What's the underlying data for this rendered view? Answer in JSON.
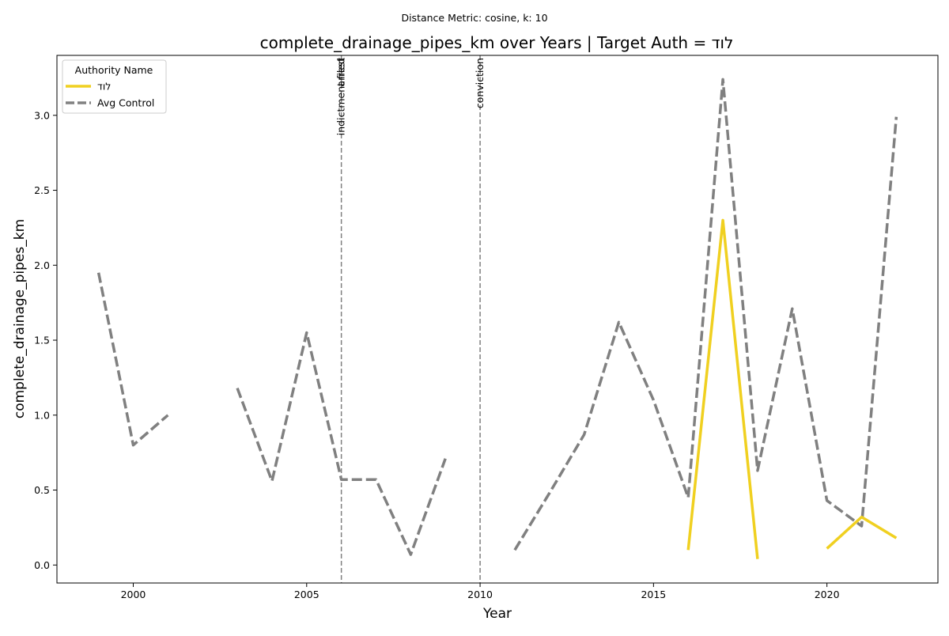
{
  "chart_data": {
    "type": "line",
    "suptitle": "Distance Metric: cosine, k: 10",
    "title": "complete_drainage_pipes_km over Years | Target Auth = לוד",
    "xlabel": "Year",
    "ylabel": "complete_drainage_pipes_km",
    "xlim": [
      1997.8,
      2023.2
    ],
    "ylim": [
      -0.12,
      3.4
    ],
    "xticks": [
      2000,
      2005,
      2010,
      2015,
      2020
    ],
    "yticks": [
      0.0,
      0.5,
      1.0,
      1.5,
      2.0,
      2.5,
      3.0
    ],
    "legend": {
      "title": "Authority Name",
      "placement": "top-left"
    },
    "events": [
      {
        "x": 2006,
        "labels": [
          "indictment filed",
          "arrest"
        ]
      },
      {
        "x": 2010,
        "labels": [
          "conviction"
        ]
      }
    ],
    "series": [
      {
        "name": "לוד",
        "color": "#f0d020",
        "dash": "solid",
        "segments": [
          [
            [
              2016,
              0.1
            ],
            [
              2017,
              2.3
            ],
            [
              2018,
              0.04
            ]
          ],
          [
            [
              2020,
              0.11
            ],
            [
              2021,
              0.32
            ],
            [
              2022,
              0.18
            ]
          ]
        ]
      },
      {
        "name": "Avg Control",
        "color": "#808080",
        "dash": "dashed",
        "segments": [
          [
            [
              1999,
              1.95
            ],
            [
              2000,
              0.8
            ],
            [
              2001,
              1.0
            ]
          ],
          [
            [
              2003,
              1.18
            ],
            [
              2004,
              0.56
            ],
            [
              2005,
              1.55
            ],
            [
              2006,
              0.57
            ],
            [
              2007,
              0.57
            ],
            [
              2008,
              0.07
            ],
            [
              2009,
              0.71
            ]
          ],
          [
            [
              2011,
              0.1
            ],
            [
              2012,
              0.48
            ],
            [
              2013,
              0.87
            ],
            [
              2014,
              1.62
            ],
            [
              2015,
              1.1
            ],
            [
              2016,
              0.45
            ],
            [
              2017,
              3.24
            ],
            [
              2018,
              0.63
            ],
            [
              2019,
              1.71
            ],
            [
              2020,
              0.43
            ],
            [
              2021,
              0.26
            ],
            [
              2022,
              2.99
            ]
          ]
        ]
      }
    ]
  }
}
